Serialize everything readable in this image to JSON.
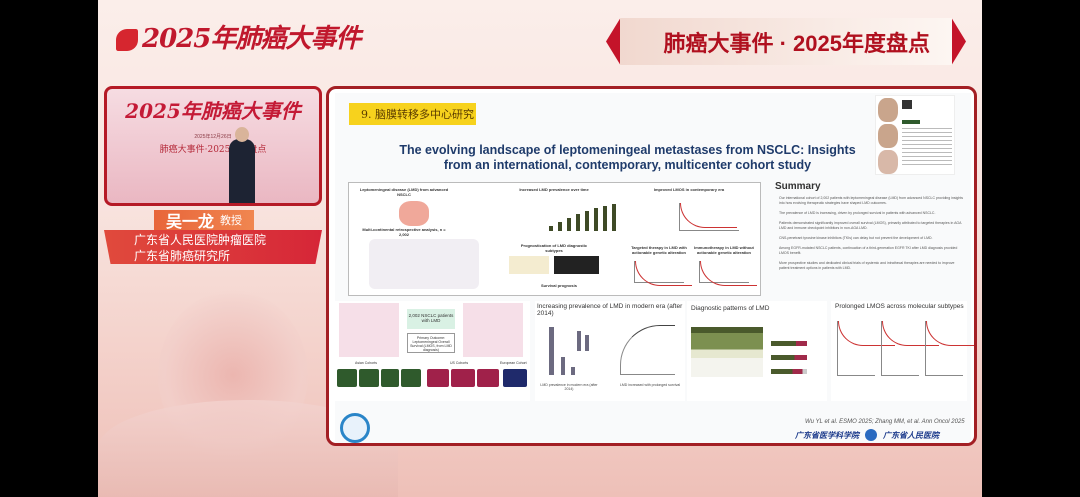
{
  "header": {
    "logo_text": "2025年肺癌大事件",
    "banner": "肺癌大事件 · 2025年度盘点"
  },
  "video": {
    "stage_title": "2025年肺癌大事件",
    "stage_date": "2025年12月26日",
    "stage_subtitle": "肺癌大事件·2025年度盘点"
  },
  "speaker": {
    "name": "吴一龙",
    "title": "教授",
    "affiliations": [
      "广东省人民医院肿瘤医院",
      "广东省肺癌研究所"
    ]
  },
  "slide": {
    "tag": "9. 脑膜转移多中心研究",
    "title_line1": "The evolving landscape of leptomeningeal metastases from NSCLC: Insights",
    "title_line2": "from an international, contemporary, multicenter cohort study",
    "graphical_abstract": {
      "labels": [
        "Leptomeningeal disease (LMD) from advanced NSCLC",
        "Increased LMD prevalence over time",
        "Improved LMOS in contemporary era",
        "Multi-continental retrospective analysis, n = 2,002",
        "Prognostication of LMD diagnostic subtypes",
        "Targeted therapy in LMD with actionable genetic alteration",
        "Immunotherapy in LMD without actionable genetic alteration",
        "Survival prognosis"
      ]
    },
    "summary_heading": "Summary",
    "summary_items": [
      "Our international cohort of 2,002 patients with leptomeningeal disease (LMD) from advanced NSCLC providing insights into how evolving therapeutic strategies have shaped LMD outcomes.",
      "The prevalence of LMD is increasing, driven by prolonged survival in patients with advanced NSCLC.",
      "Patients demonstrated significantly improved overall survival (LMOS), primarily attributed to targeted therapies in AGA LMD and immune checkpoint inhibitors in non-AGA LMD.",
      "CNS-penetrant tyrosine kinase inhibitors (TKIs) can delay but not prevent the development of LMD.",
      "Among EGFR-mutated NSCLC patients, continuation of a third-generation EGFR TKI after LMD diagnosis provided LMOS benefit.",
      "More prospective studies and dedicated clinical trials of systemic and intrathecal therapies are needed to improve patient treatment options in patients with LMD."
    ],
    "cohort_center": "2,002 NSCLC patients with LMD",
    "cohort_outcome": "Primary Outcome: Leptomeningeal Overall Survival (LMOS, from LMD diagnosis)",
    "cohort_groups": [
      "Asian Cohorts",
      "US Cohorts",
      "European Cohort"
    ],
    "panel_prevalence_title": "Increasing prevalence of LMD in modern era (after 2014)",
    "panel_prevalence_captions": [
      "LMD prevalence in modern era (after 2014)",
      "LMD increased with prolonged survival"
    ],
    "panel_diagnostic_title": "Diagnostic patterns of LMD",
    "panel_survival_title": "Prolonged LMOS across molecular subtypes",
    "citation": "Wu YL et al. ESMO 2025; Zhang MM, et al. Ann Oncol 2025",
    "footer_logos": [
      "广东省医学科学院",
      "广东省人民医院"
    ]
  },
  "colors": {
    "brand_red": "#c4142a",
    "tag_yellow": "#f7d21d",
    "title_blue": "#1f3b6b",
    "asia_green": "#2f5a2c",
    "us_magenta": "#a0214a",
    "eu_navy": "#1f2a6b"
  }
}
